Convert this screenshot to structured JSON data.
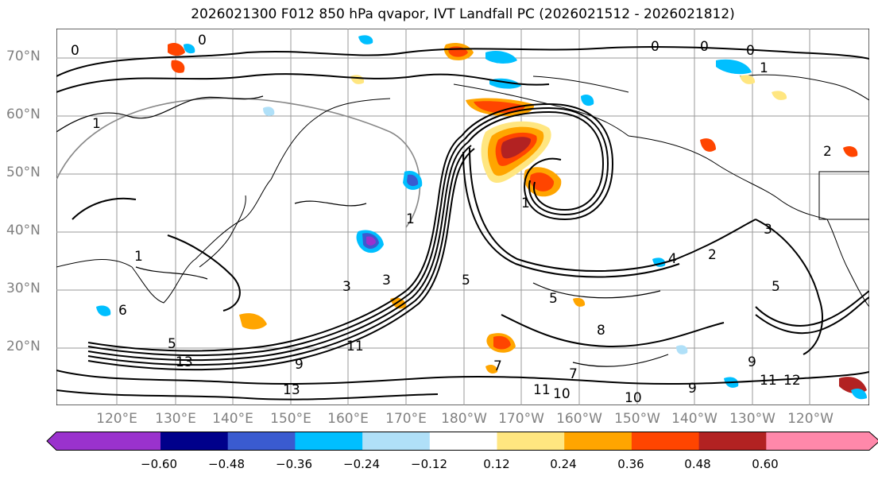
{
  "title": "2026021300 F012 850 hPa qvapor, IVT Landfall PC (2026021512 - 2026021812)",
  "lat_labels": [
    "70°N",
    "60°N",
    "50°N",
    "40°N",
    "30°N",
    "20°N"
  ],
  "lon_labels": [
    "120°E",
    "130°E",
    "140°E",
    "150°E",
    "160°E",
    "170°E",
    "180°W",
    "170°W",
    "160°W",
    "150°W",
    "140°W",
    "130°W",
    "120°W"
  ],
  "colorbar": {
    "ticks": [
      "−0.60",
      "−0.48",
      "−0.36",
      "−0.24",
      "−0.12",
      "0.12",
      "0.24",
      "0.36",
      "0.48",
      "0.60"
    ],
    "colors": [
      "#9a32cd",
      "#00008b",
      "#3a5bd0",
      "#00bfff",
      "#b0e0f8",
      "#ffffff",
      "#ffe680",
      "#ffa500",
      "#ff4500",
      "#b22222",
      "#ff88aa"
    ]
  },
  "contour_labels": [
    "0",
    "0",
    "0",
    "0",
    "0",
    "1",
    "1",
    "1",
    "1",
    "1",
    "2",
    "2",
    "3",
    "3",
    "3",
    "4",
    "5",
    "5",
    "5",
    "5",
    "6",
    "7",
    "7",
    "8",
    "9",
    "9",
    "9",
    "10",
    "10",
    "11",
    "11",
    "11",
    "12",
    "13",
    "13"
  ]
}
